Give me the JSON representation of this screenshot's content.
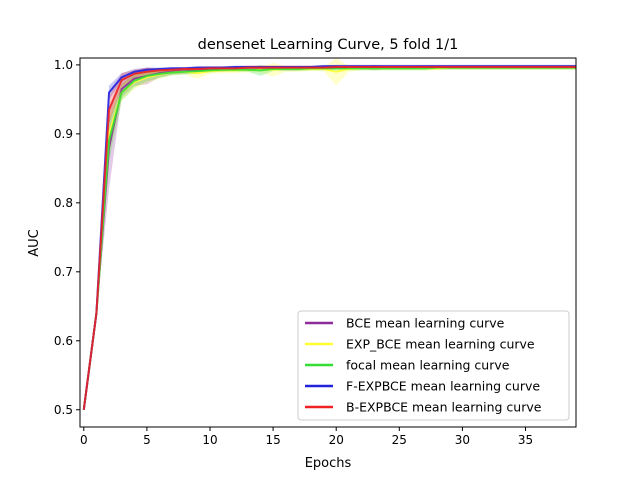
{
  "chart_data": {
    "type": "line",
    "title": "densenet Learning Curve, 5 fold 1/1",
    "xlabel": "Epochs",
    "ylabel": "AUC",
    "xlim": [
      -0.3,
      39
    ],
    "ylim": [
      0.475,
      1.01
    ],
    "xticks": [
      0,
      5,
      10,
      15,
      20,
      25,
      30,
      35
    ],
    "yticks": [
      0.5,
      0.6,
      0.7,
      0.8,
      0.9,
      1.0
    ],
    "ytick_labels": [
      "0.5",
      "0.6",
      "0.7",
      "0.8",
      "0.9",
      "1.0"
    ],
    "grid": false,
    "legend_position": "bottom-right",
    "x": [
      0,
      1,
      2,
      3,
      4,
      5,
      6,
      7,
      8,
      9,
      10,
      11,
      12,
      13,
      14,
      15,
      16,
      17,
      18,
      19,
      20,
      21,
      22,
      23,
      24,
      25,
      26,
      27,
      28,
      29,
      30,
      31,
      32,
      33,
      34,
      35,
      36,
      37,
      38,
      39
    ],
    "series": [
      {
        "name": "BCE mean learning curve",
        "color": "#8e2c9c",
        "values": [
          0.5,
          0.64,
          0.88,
          0.965,
          0.98,
          0.984,
          0.988,
          0.99,
          0.991,
          0.992,
          0.993,
          0.993,
          0.994,
          0.994,
          0.994,
          0.995,
          0.995,
          0.995,
          0.995,
          0.995,
          0.996,
          0.996,
          0.996,
          0.996,
          0.996,
          0.996,
          0.996,
          0.997,
          0.997,
          0.997,
          0.997,
          0.997,
          0.997,
          0.997,
          0.997,
          0.997,
          0.997,
          0.997,
          0.997,
          0.997
        ],
        "band": [
          0.0,
          0.0,
          0.06,
          0.012,
          0.01,
          0.012,
          0.006,
          0.004,
          0.004,
          0.003,
          0.003,
          0.003,
          0.003,
          0.003,
          0.003,
          0.003,
          0.003,
          0.003,
          0.002,
          0.002,
          0.002,
          0.002,
          0.002,
          0.004,
          0.002,
          0.002,
          0.002,
          0.002,
          0.002,
          0.002,
          0.002,
          0.002,
          0.002,
          0.002,
          0.002,
          0.002,
          0.002,
          0.002,
          0.002,
          0.002
        ]
      },
      {
        "name": "EXP_BCE mean learning curve",
        "color": "#ffff33",
        "values": [
          0.5,
          0.64,
          0.9,
          0.96,
          0.975,
          0.982,
          0.986,
          0.989,
          0.99,
          0.988,
          0.991,
          0.992,
          0.992,
          0.993,
          0.993,
          0.993,
          0.994,
          0.994,
          0.994,
          0.994,
          0.99,
          0.994,
          0.995,
          0.995,
          0.995,
          0.995,
          0.995,
          0.995,
          0.995,
          0.996,
          0.996,
          0.996,
          0.996,
          0.996,
          0.996,
          0.996,
          0.996,
          0.996,
          0.996,
          0.996
        ],
        "band": [
          0.0,
          0.0,
          0.03,
          0.012,
          0.01,
          0.008,
          0.006,
          0.004,
          0.004,
          0.008,
          0.004,
          0.004,
          0.004,
          0.004,
          0.004,
          0.01,
          0.004,
          0.004,
          0.003,
          0.003,
          0.02,
          0.004,
          0.003,
          0.003,
          0.003,
          0.003,
          0.003,
          0.003,
          0.003,
          0.003,
          0.003,
          0.003,
          0.003,
          0.003,
          0.003,
          0.003,
          0.003,
          0.003,
          0.003,
          0.003
        ]
      },
      {
        "name": "focal mean learning curve",
        "color": "#33dd33",
        "values": [
          0.5,
          0.64,
          0.89,
          0.96,
          0.977,
          0.984,
          0.987,
          0.989,
          0.99,
          0.991,
          0.992,
          0.993,
          0.993,
          0.993,
          0.992,
          0.994,
          0.994,
          0.994,
          0.995,
          0.995,
          0.995,
          0.995,
          0.995,
          0.995,
          0.995,
          0.995,
          0.995,
          0.995,
          0.996,
          0.996,
          0.996,
          0.996,
          0.996,
          0.996,
          0.996,
          0.996,
          0.996,
          0.996,
          0.996,
          0.996
        ],
        "band": [
          0.0,
          0.0,
          0.03,
          0.012,
          0.01,
          0.008,
          0.006,
          0.004,
          0.004,
          0.004,
          0.003,
          0.003,
          0.003,
          0.003,
          0.008,
          0.003,
          0.003,
          0.003,
          0.003,
          0.003,
          0.003,
          0.003,
          0.003,
          0.003,
          0.003,
          0.003,
          0.003,
          0.003,
          0.003,
          0.003,
          0.003,
          0.003,
          0.003,
          0.003,
          0.003,
          0.003,
          0.003,
          0.003,
          0.003,
          0.003
        ]
      },
      {
        "name": "F-EXPBCE mean learning curve",
        "color": "#2222dd",
        "values": [
          0.5,
          0.64,
          0.96,
          0.982,
          0.99,
          0.993,
          0.994,
          0.995,
          0.995,
          0.996,
          0.996,
          0.996,
          0.997,
          0.997,
          0.997,
          0.997,
          0.997,
          0.997,
          0.997,
          0.998,
          0.998,
          0.998,
          0.998,
          0.998,
          0.998,
          0.998,
          0.998,
          0.998,
          0.998,
          0.998,
          0.998,
          0.998,
          0.998,
          0.998,
          0.998,
          0.998,
          0.998,
          0.998,
          0.998,
          0.998
        ],
        "band": [
          0.0,
          0.0,
          0.01,
          0.006,
          0.004,
          0.003,
          0.002,
          0.002,
          0.002,
          0.002,
          0.002,
          0.002,
          0.002,
          0.002,
          0.002,
          0.002,
          0.002,
          0.002,
          0.002,
          0.002,
          0.002,
          0.002,
          0.002,
          0.002,
          0.002,
          0.002,
          0.002,
          0.002,
          0.002,
          0.002,
          0.002,
          0.002,
          0.002,
          0.002,
          0.002,
          0.002,
          0.002,
          0.002,
          0.002,
          0.002
        ]
      },
      {
        "name": "B-EXPBCE mean learning curve",
        "color": "#ee2222",
        "values": [
          0.5,
          0.64,
          0.935,
          0.978,
          0.987,
          0.99,
          0.992,
          0.993,
          0.994,
          0.994,
          0.995,
          0.995,
          0.995,
          0.996,
          0.996,
          0.996,
          0.996,
          0.996,
          0.996,
          0.996,
          0.997,
          0.997,
          0.997,
          0.997,
          0.997,
          0.997,
          0.997,
          0.997,
          0.997,
          0.997,
          0.997,
          0.997,
          0.997,
          0.997,
          0.997,
          0.997,
          0.997,
          0.997,
          0.997,
          0.997
        ],
        "band": [
          0.0,
          0.0,
          0.02,
          0.01,
          0.006,
          0.006,
          0.003,
          0.003,
          0.003,
          0.003,
          0.003,
          0.003,
          0.003,
          0.003,
          0.003,
          0.003,
          0.003,
          0.003,
          0.003,
          0.003,
          0.003,
          0.003,
          0.003,
          0.003,
          0.003,
          0.003,
          0.003,
          0.003,
          0.003,
          0.003,
          0.003,
          0.003,
          0.003,
          0.003,
          0.003,
          0.003,
          0.003,
          0.003,
          0.003,
          0.003
        ]
      }
    ]
  }
}
